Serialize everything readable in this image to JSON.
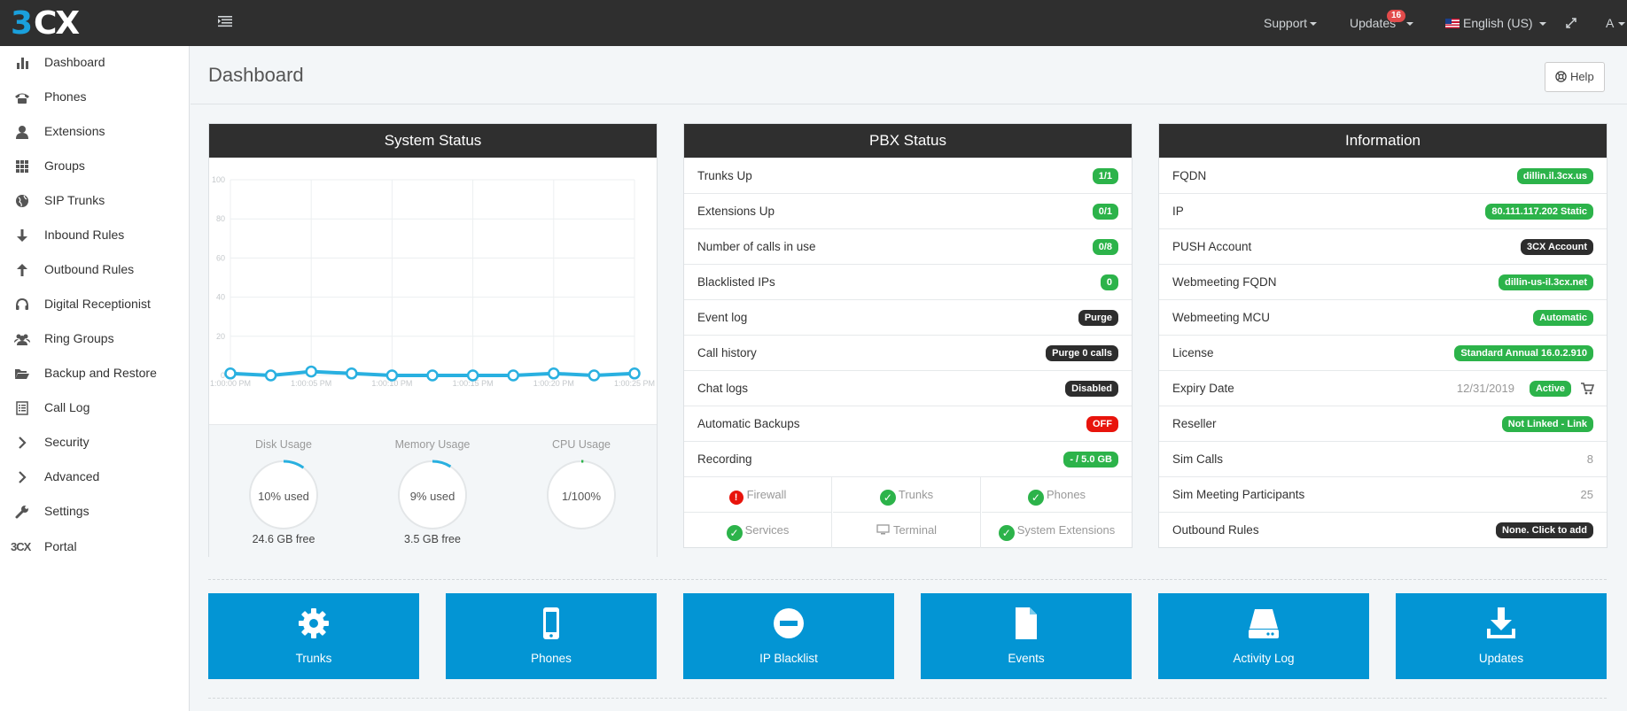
{
  "topbar": {
    "support_label": "Support",
    "updates_label": "Updates",
    "updates_count": "16",
    "language_label": "English (US)",
    "user_label": "A"
  },
  "sidebar": {
    "items": [
      {
        "label": "Dashboard",
        "icon": "bar-chart-icon"
      },
      {
        "label": "Phones",
        "icon": "phone-icon"
      },
      {
        "label": "Extensions",
        "icon": "user-icon"
      },
      {
        "label": "Groups",
        "icon": "grid-icon"
      },
      {
        "label": "SIP Trunks",
        "icon": "globe-icon"
      },
      {
        "label": "Inbound Rules",
        "icon": "arrow-down-icon"
      },
      {
        "label": "Outbound Rules",
        "icon": "arrow-up-icon"
      },
      {
        "label": "Digital Receptionist",
        "icon": "headset-icon"
      },
      {
        "label": "Ring Groups",
        "icon": "users-icon"
      },
      {
        "label": "Backup and Restore",
        "icon": "folder-open-icon"
      },
      {
        "label": "Call Log",
        "icon": "list-icon"
      },
      {
        "label": "Security",
        "icon": "chevron-right-icon"
      },
      {
        "label": "Advanced",
        "icon": "chevron-right-icon"
      },
      {
        "label": "Settings",
        "icon": "wrench-icon"
      },
      {
        "label": "Portal",
        "icon": "3cx-logo-icon",
        "icon_text": "3CX"
      }
    ]
  },
  "header": {
    "title": "Dashboard",
    "help_label": "Help"
  },
  "system_status": {
    "title": "System Status",
    "disk": {
      "title": "Disk Usage",
      "value": "10% used",
      "sub": "24.6 GB free",
      "fraction": 0.1
    },
    "memory": {
      "title": "Memory Usage",
      "value": "9% used",
      "sub": "3.5 GB free",
      "fraction": 0.09
    },
    "cpu": {
      "title": "CPU Usage",
      "value": "1/100%",
      "sub": "",
      "fraction": 0.01
    }
  },
  "chart_data": {
    "type": "line",
    "x": [
      "1:00:00 PM",
      "",
      "1:00:05 PM",
      "",
      "1:00:10 PM",
      "",
      "1:00:15 PM",
      "",
      "1:00:20 PM",
      "",
      "1:00:25 PM"
    ],
    "series": [
      {
        "values": [
          1,
          0,
          2,
          1,
          0,
          0,
          0,
          0,
          1,
          0,
          1
        ],
        "color": "#29b0e0"
      }
    ],
    "yticks": [
      "0",
      "20",
      "40",
      "60",
      "80",
      "100"
    ],
    "ylim": [
      0,
      100
    ],
    "grid": true
  },
  "pbx_status": {
    "title": "PBX Status",
    "rows": [
      {
        "label": "Trunks Up",
        "value": "1/1",
        "style": "green"
      },
      {
        "label": "Extensions Up",
        "value": "0/1",
        "style": "green"
      },
      {
        "label": "Number of calls in use",
        "value": "0/8",
        "style": "green"
      },
      {
        "label": "Blacklisted IPs",
        "value": "0",
        "style": "green"
      },
      {
        "label": "Event log",
        "value": "Purge",
        "style": "dark"
      },
      {
        "label": "Call history",
        "value": "Purge 0 calls",
        "style": "dark"
      },
      {
        "label": "Chat logs",
        "value": "Disabled",
        "style": "dark"
      },
      {
        "label": "Automatic Backups",
        "value": "OFF",
        "style": "red"
      },
      {
        "label": "Recording",
        "value": "- / 5.0 GB",
        "style": "green"
      }
    ],
    "services": [
      {
        "label": "Firewall",
        "state": "error"
      },
      {
        "label": "Trunks",
        "state": "ok"
      },
      {
        "label": "Phones",
        "state": "ok"
      },
      {
        "label": "Services",
        "state": "ok"
      },
      {
        "label": "Terminal",
        "state": "monitor"
      },
      {
        "label": "System Extensions",
        "state": "ok"
      }
    ]
  },
  "information": {
    "title": "Information",
    "rows": [
      {
        "label": "FQDN",
        "value": "dillin.il.3cx.us",
        "style": "green"
      },
      {
        "label": "IP",
        "value": "80.111.117.202 Static",
        "style": "green"
      },
      {
        "label": "PUSH Account",
        "value": "3CX Account",
        "style": "dark"
      },
      {
        "label": "Webmeeting FQDN",
        "value": "dillin-us-il.3cx.net",
        "style": "green"
      },
      {
        "label": "Webmeeting MCU",
        "value": "Automatic",
        "style": "green"
      },
      {
        "label": "License",
        "value": "Standard Annual 16.0.2.910",
        "style": "green"
      },
      {
        "label": "Expiry Date",
        "value": "12/31/2019",
        "badge": "Active",
        "style": "date"
      },
      {
        "label": "Reseller",
        "value": "Not Linked - Link",
        "style": "green"
      },
      {
        "label": "Sim Calls",
        "value": "8",
        "style": "plain"
      },
      {
        "label": "Sim Meeting Participants",
        "value": "25",
        "style": "plain"
      },
      {
        "label": "Outbound Rules",
        "value": "None. Click to add",
        "style": "dark"
      }
    ]
  },
  "tiles": [
    {
      "label": "Trunks",
      "icon": "gear-icon"
    },
    {
      "label": "Phones",
      "icon": "mobile-phone-icon"
    },
    {
      "label": "IP Blacklist",
      "icon": "minus-circle-icon"
    },
    {
      "label": "Events",
      "icon": "file-icon"
    },
    {
      "label": "Activity Log",
      "icon": "hard-drive-icon"
    },
    {
      "label": "Updates",
      "icon": "download-icon"
    }
  ],
  "colors": {
    "accent": "#0395d4",
    "topbar": "#2f2f2f",
    "green": "#2cb34a",
    "red": "#e8140c",
    "chart_line": "#29b0e0"
  }
}
